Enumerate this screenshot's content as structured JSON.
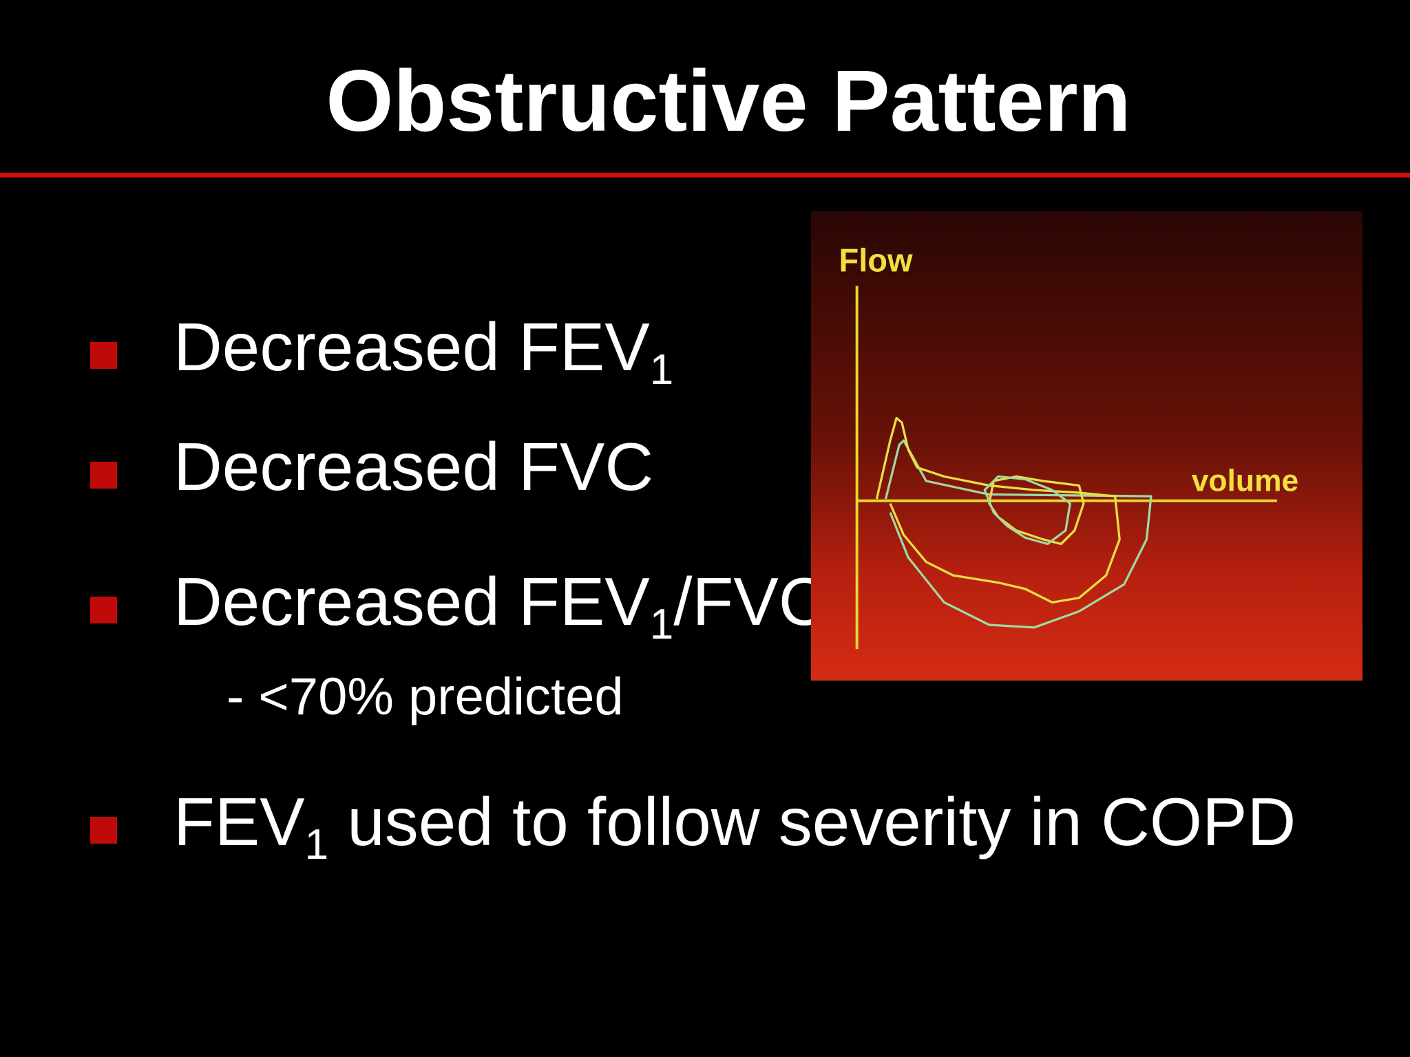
{
  "header": {
    "title": "Obstructive Pattern"
  },
  "bullets": [
    {
      "segments": [
        {
          "text": "Decreased FEV"
        },
        {
          "sub": "1"
        }
      ]
    },
    {
      "segments": [
        {
          "text": "Decreased FVC"
        }
      ]
    },
    {
      "segments": [
        {
          "text": "Decreased FEV"
        },
        {
          "sub": "1"
        },
        {
          "text": "/FVC"
        }
      ],
      "sub_item": "- <70% predicted"
    },
    {
      "segments": [
        {
          "text": "FEV"
        },
        {
          "sub": "1"
        },
        {
          "text": " used to follow severity in COPD"
        }
      ]
    }
  ],
  "figure": {
    "y_label": "Flow",
    "x_label": "volume"
  }
}
